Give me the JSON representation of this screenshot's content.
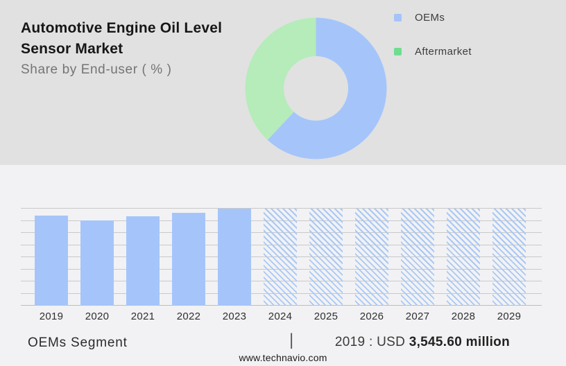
{
  "header": {
    "title_line1": "Automotive Engine Oil Level",
    "title_line2": "Sensor Market",
    "subtitle": "Share by End-user ( % )"
  },
  "legend": [
    {
      "label": "OEMs",
      "swatch_color": "#a5c3fa"
    },
    {
      "label": "Aftermarket",
      "swatch_color": "#6ede8e"
    }
  ],
  "chart_data": [
    {
      "type": "pie",
      "title": "Share by End-user ( % )",
      "labels": [
        "OEMs",
        "Aftermarket"
      ],
      "values": [
        62,
        38
      ],
      "colors": [
        "#a5c5fa",
        "#b5ecba"
      ],
      "donut": true,
      "start_angle_deg": 0,
      "clockwise": true,
      "legend_position": "right"
    },
    {
      "type": "bar",
      "categories": [
        "2019",
        "2020",
        "2021",
        "2022",
        "2023",
        "2024",
        "2025",
        "2026",
        "2027",
        "2028",
        "2029"
      ],
      "values": [
        93,
        88,
        92,
        96,
        100,
        100,
        100,
        100,
        100,
        100,
        100
      ],
      "hatched": [
        false,
        false,
        false,
        false,
        false,
        true,
        true,
        true,
        true,
        true,
        true
      ],
      "bar_color": "#a5c5fa",
      "hatch_color": "#a9c8f4",
      "gridline_color": "#c9c9c9",
      "gridline_count": 9,
      "ylim": [
        0,
        100
      ],
      "xlabel": "",
      "ylabel": "",
      "y_axis_labels_shown": false
    }
  ],
  "footer": {
    "segment_label": "OEMs Segment",
    "separator": "|",
    "value_prefix": "2019 : USD ",
    "value_bold": "3,545.60 million",
    "website": "www.technavio.com"
  },
  "colors": {
    "top_background": "#e1e1e1",
    "bottom_background": "#f2f2f4",
    "accent_blue": "#a5c5fa",
    "accent_green_donut": "#b5ecba",
    "accent_green_legend": "#6ede8e"
  }
}
